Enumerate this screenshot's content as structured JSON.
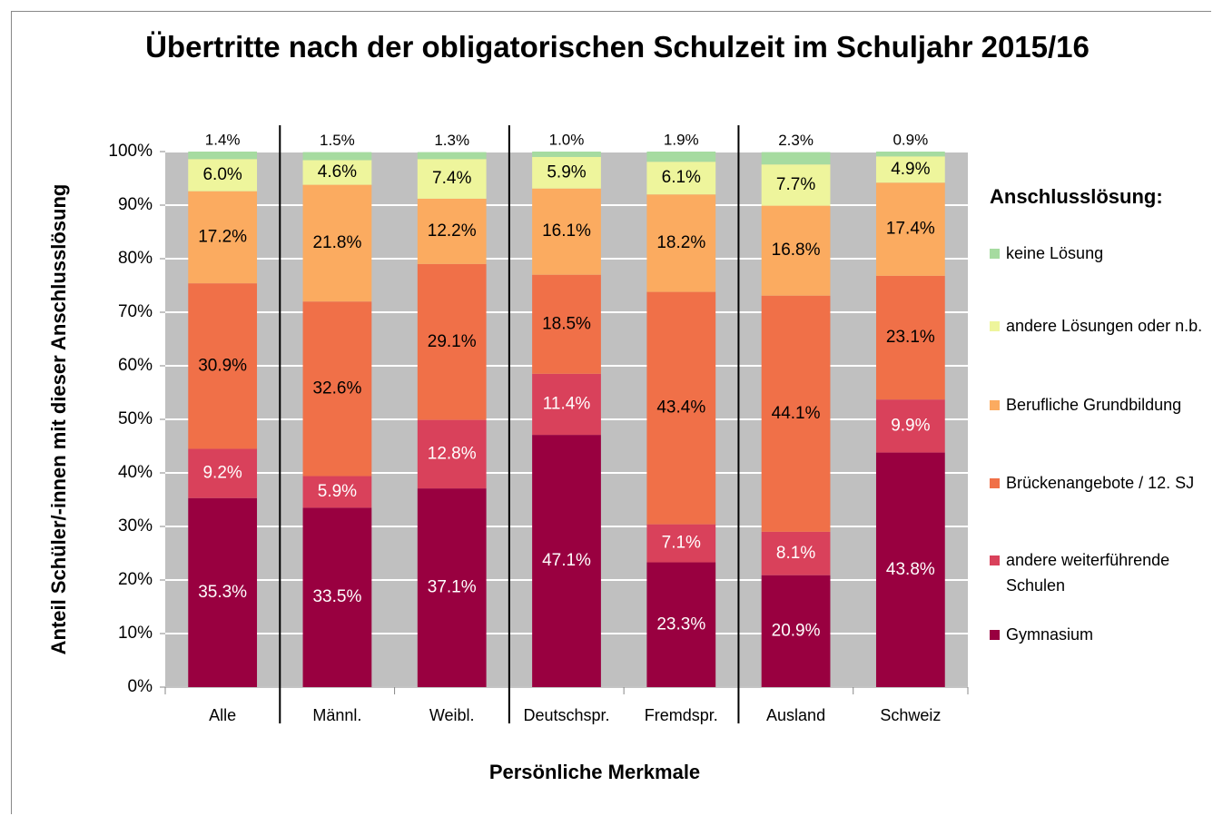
{
  "chart_data": {
    "type": "stacked_bar",
    "title": "Übertritte nach der obligatorischen Schulzeit im Schuljahr 2015/16",
    "x_label": "Persönliche Merkmale",
    "y_label": "Anteil Schüler/-innen mit dieser Anschlusslösung",
    "legend_title": "Anschlusslösung:",
    "legend_position": "right",
    "categories": [
      "Alle",
      "Männl.",
      "Weibl.",
      "Deutschspr.",
      "Fremdspr.",
      "Ausland",
      "Schweiz"
    ],
    "ylim": [
      0,
      100
    ],
    "yticks": [
      {
        "value": 0,
        "label": "0%"
      },
      {
        "value": 10,
        "label": "10%"
      },
      {
        "value": 20,
        "label": "20%"
      },
      {
        "value": 30,
        "label": "30%"
      },
      {
        "value": 40,
        "label": "40%"
      },
      {
        "value": 50,
        "label": "50%"
      },
      {
        "value": 60,
        "label": "60%"
      },
      {
        "value": 70,
        "label": "70%"
      },
      {
        "value": 80,
        "label": "80%"
      },
      {
        "value": 90,
        "label": "90%"
      },
      {
        "value": 100,
        "label": "100%"
      }
    ],
    "grid": true,
    "series": [
      {
        "name": "Gymnasium",
        "color": "#990040",
        "values": [
          35.3,
          33.5,
          37.1,
          47.1,
          23.3,
          20.9,
          43.8
        ],
        "value_labels": [
          "35.3%",
          "33.5%",
          "37.1%",
          "47.1%",
          "23.3%",
          "20.9%",
          "43.8%"
        ]
      },
      {
        "name": "andere weiterführende Schulen",
        "color": "#d9415b",
        "values": [
          9.2,
          5.9,
          12.8,
          11.4,
          7.1,
          8.1,
          9.9
        ],
        "value_labels": [
          "9.2%",
          "5.9%",
          "12.8%",
          "11.4%",
          "7.1%",
          "8.1%",
          "9.9%"
        ]
      },
      {
        "name": "Brückenangebote / 12. SJ",
        "color": "#f07048",
        "values": [
          30.9,
          32.6,
          29.1,
          18.5,
          43.4,
          44.1,
          23.1
        ],
        "value_labels": [
          "30.9%",
          "32.6%",
          "29.1%",
          "18.5%",
          "43.4%",
          "44.1%",
          "23.1%"
        ]
      },
      {
        "name": "Berufliche Grundbildung",
        "color": "#fbab60",
        "values": [
          17.2,
          21.8,
          12.2,
          16.1,
          18.2,
          16.8,
          17.4
        ],
        "value_labels": [
          "17.2%",
          "21.8%",
          "12.2%",
          "16.1%",
          "18.2%",
          "16.8%",
          "17.4%"
        ]
      },
      {
        "name": "andere Lösungen oder n.b.",
        "color": "#eef59c",
        "values": [
          6.0,
          4.6,
          7.4,
          5.9,
          6.1,
          7.7,
          4.9
        ],
        "value_labels": [
          "6.0%",
          "4.6%",
          "7.4%",
          "5.9%",
          "6.1%",
          "7.7%",
          "4.9%"
        ]
      },
      {
        "name": "keine Lösung",
        "color": "#a6dba0",
        "values": [
          1.4,
          1.5,
          1.3,
          1.0,
          1.9,
          2.3,
          0.9
        ],
        "value_labels": [
          "1.4%",
          "1.5%",
          "1.3%",
          "1.0%",
          "1.9%",
          "2.3%",
          "0.9%"
        ]
      }
    ]
  }
}
